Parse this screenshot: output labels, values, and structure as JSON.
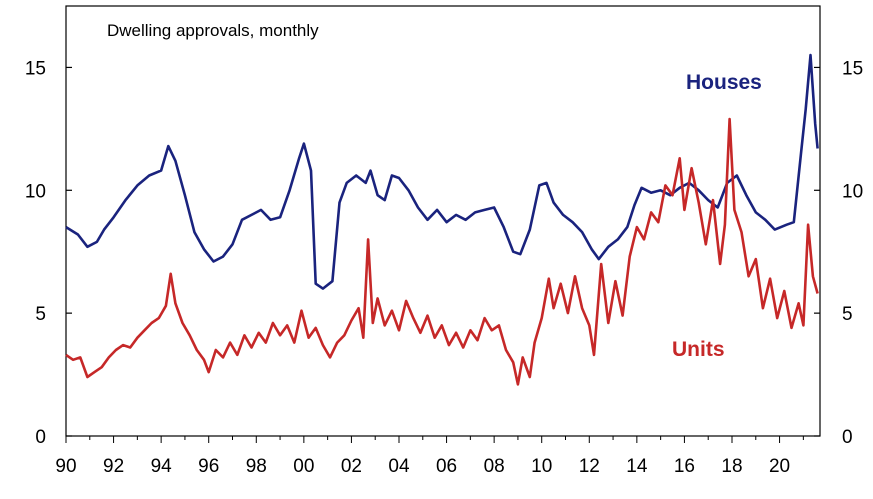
{
  "chart_data": {
    "type": "line",
    "title": "Dwelling approvals, monthly",
    "xlabel": "",
    "ylabel": "",
    "xlim": [
      1990,
      2021.7
    ],
    "ylim": [
      0,
      17.5
    ],
    "grid": false,
    "x_ticks": [
      "90",
      "92",
      "94",
      "96",
      "98",
      "00",
      "02",
      "04",
      "06",
      "08",
      "10",
      "12",
      "14",
      "16",
      "18",
      "20"
    ],
    "y_ticks_left": [
      "0",
      "5",
      "10",
      "15"
    ],
    "y_ticks_right": [
      "0",
      "5",
      "10",
      "15"
    ],
    "series": [
      {
        "name": "Houses",
        "color": "#1a237e",
        "points": [
          [
            1990.0,
            8.5
          ],
          [
            1990.5,
            8.2
          ],
          [
            1990.9,
            7.7
          ],
          [
            1991.3,
            7.9
          ],
          [
            1991.6,
            8.4
          ],
          [
            1992.0,
            8.9
          ],
          [
            1992.5,
            9.6
          ],
          [
            1993.0,
            10.2
          ],
          [
            1993.5,
            10.6
          ],
          [
            1994.0,
            10.8
          ],
          [
            1994.3,
            11.8
          ],
          [
            1994.6,
            11.2
          ],
          [
            1995.0,
            9.8
          ],
          [
            1995.4,
            8.3
          ],
          [
            1995.8,
            7.6
          ],
          [
            1996.2,
            7.1
          ],
          [
            1996.6,
            7.3
          ],
          [
            1997.0,
            7.8
          ],
          [
            1997.4,
            8.8
          ],
          [
            1997.8,
            9.0
          ],
          [
            1998.2,
            9.2
          ],
          [
            1998.6,
            8.8
          ],
          [
            1999.0,
            8.9
          ],
          [
            1999.4,
            10.0
          ],
          [
            1999.8,
            11.3
          ],
          [
            2000.0,
            11.9
          ],
          [
            2000.3,
            10.8
          ],
          [
            2000.5,
            6.2
          ],
          [
            2000.8,
            6.0
          ],
          [
            2001.2,
            6.3
          ],
          [
            2001.5,
            9.5
          ],
          [
            2001.8,
            10.3
          ],
          [
            2002.2,
            10.6
          ],
          [
            2002.6,
            10.3
          ],
          [
            2002.8,
            10.8
          ],
          [
            2003.1,
            9.8
          ],
          [
            2003.4,
            9.6
          ],
          [
            2003.7,
            10.6
          ],
          [
            2004.0,
            10.5
          ],
          [
            2004.4,
            10.0
          ],
          [
            2004.8,
            9.3
          ],
          [
            2005.2,
            8.8
          ],
          [
            2005.6,
            9.2
          ],
          [
            2006.0,
            8.7
          ],
          [
            2006.4,
            9.0
          ],
          [
            2006.8,
            8.8
          ],
          [
            2007.2,
            9.1
          ],
          [
            2007.6,
            9.2
          ],
          [
            2008.0,
            9.3
          ],
          [
            2008.4,
            8.5
          ],
          [
            2008.8,
            7.5
          ],
          [
            2009.1,
            7.4
          ],
          [
            2009.5,
            8.4
          ],
          [
            2009.9,
            10.2
          ],
          [
            2010.2,
            10.3
          ],
          [
            2010.5,
            9.5
          ],
          [
            2010.9,
            9.0
          ],
          [
            2011.3,
            8.7
          ],
          [
            2011.7,
            8.3
          ],
          [
            2012.1,
            7.6
          ],
          [
            2012.4,
            7.2
          ],
          [
            2012.8,
            7.7
          ],
          [
            2013.2,
            8.0
          ],
          [
            2013.6,
            8.5
          ],
          [
            2013.9,
            9.4
          ],
          [
            2014.2,
            10.1
          ],
          [
            2014.6,
            9.9
          ],
          [
            2015.0,
            10.0
          ],
          [
            2015.4,
            9.8
          ],
          [
            2015.8,
            10.1
          ],
          [
            2016.2,
            10.3
          ],
          [
            2016.6,
            10.0
          ],
          [
            2017.0,
            9.6
          ],
          [
            2017.4,
            9.3
          ],
          [
            2017.8,
            10.3
          ],
          [
            2018.2,
            10.6
          ],
          [
            2018.6,
            9.8
          ],
          [
            2019.0,
            9.1
          ],
          [
            2019.4,
            8.8
          ],
          [
            2019.8,
            8.4
          ],
          [
            2020.3,
            8.6
          ],
          [
            2020.6,
            8.7
          ],
          [
            2020.9,
            11.5
          ],
          [
            2021.1,
            13.3
          ],
          [
            2021.3,
            15.5
          ],
          [
            2021.5,
            12.7
          ],
          [
            2021.6,
            11.7
          ]
        ]
      },
      {
        "name": "Units",
        "color": "#c62828",
        "points": [
          [
            1990.0,
            3.3
          ],
          [
            1990.3,
            3.1
          ],
          [
            1990.6,
            3.2
          ],
          [
            1990.9,
            2.4
          ],
          [
            1991.2,
            2.6
          ],
          [
            1991.5,
            2.8
          ],
          [
            1991.8,
            3.2
          ],
          [
            1992.1,
            3.5
          ],
          [
            1992.4,
            3.7
          ],
          [
            1992.7,
            3.6
          ],
          [
            1993.0,
            4.0
          ],
          [
            1993.3,
            4.3
          ],
          [
            1993.6,
            4.6
          ],
          [
            1993.9,
            4.8
          ],
          [
            1994.2,
            5.3
          ],
          [
            1994.4,
            6.6
          ],
          [
            1994.6,
            5.4
          ],
          [
            1994.9,
            4.6
          ],
          [
            1995.2,
            4.1
          ],
          [
            1995.5,
            3.5
          ],
          [
            1995.8,
            3.1
          ],
          [
            1996.0,
            2.6
          ],
          [
            1996.3,
            3.5
          ],
          [
            1996.6,
            3.2
          ],
          [
            1996.9,
            3.8
          ],
          [
            1997.2,
            3.3
          ],
          [
            1997.5,
            4.1
          ],
          [
            1997.8,
            3.6
          ],
          [
            1998.1,
            4.2
          ],
          [
            1998.4,
            3.8
          ],
          [
            1998.7,
            4.6
          ],
          [
            1999.0,
            4.1
          ],
          [
            1999.3,
            4.5
          ],
          [
            1999.6,
            3.8
          ],
          [
            1999.9,
            5.1
          ],
          [
            2000.2,
            4.0
          ],
          [
            2000.5,
            4.4
          ],
          [
            2000.8,
            3.7
          ],
          [
            2001.1,
            3.2
          ],
          [
            2001.4,
            3.8
          ],
          [
            2001.7,
            4.1
          ],
          [
            2002.0,
            4.7
          ],
          [
            2002.3,
            5.2
          ],
          [
            2002.5,
            4.0
          ],
          [
            2002.7,
            8.0
          ],
          [
            2002.9,
            4.6
          ],
          [
            2003.1,
            5.6
          ],
          [
            2003.4,
            4.5
          ],
          [
            2003.7,
            5.1
          ],
          [
            2004.0,
            4.3
          ],
          [
            2004.3,
            5.5
          ],
          [
            2004.6,
            4.8
          ],
          [
            2004.9,
            4.2
          ],
          [
            2005.2,
            4.9
          ],
          [
            2005.5,
            4.0
          ],
          [
            2005.8,
            4.5
          ],
          [
            2006.1,
            3.7
          ],
          [
            2006.4,
            4.2
          ],
          [
            2006.7,
            3.6
          ],
          [
            2007.0,
            4.3
          ],
          [
            2007.3,
            3.9
          ],
          [
            2007.6,
            4.8
          ],
          [
            2007.9,
            4.3
          ],
          [
            2008.2,
            4.5
          ],
          [
            2008.5,
            3.5
          ],
          [
            2008.8,
            3.0
          ],
          [
            2009.0,
            2.1
          ],
          [
            2009.2,
            3.2
          ],
          [
            2009.5,
            2.4
          ],
          [
            2009.7,
            3.8
          ],
          [
            2010.0,
            4.8
          ],
          [
            2010.3,
            6.4
          ],
          [
            2010.5,
            5.2
          ],
          [
            2010.8,
            6.2
          ],
          [
            2011.1,
            5.0
          ],
          [
            2011.4,
            6.5
          ],
          [
            2011.7,
            5.2
          ],
          [
            2012.0,
            4.5
          ],
          [
            2012.2,
            3.3
          ],
          [
            2012.5,
            7.0
          ],
          [
            2012.8,
            4.6
          ],
          [
            2013.1,
            6.3
          ],
          [
            2013.4,
            4.9
          ],
          [
            2013.7,
            7.3
          ],
          [
            2014.0,
            8.5
          ],
          [
            2014.3,
            8.0
          ],
          [
            2014.6,
            9.1
          ],
          [
            2014.9,
            8.7
          ],
          [
            2015.2,
            10.2
          ],
          [
            2015.5,
            9.8
          ],
          [
            2015.8,
            11.3
          ],
          [
            2016.0,
            9.2
          ],
          [
            2016.3,
            10.9
          ],
          [
            2016.6,
            9.5
          ],
          [
            2016.9,
            7.8
          ],
          [
            2017.2,
            9.6
          ],
          [
            2017.5,
            7.0
          ],
          [
            2017.7,
            8.6
          ],
          [
            2017.9,
            12.9
          ],
          [
            2018.1,
            9.2
          ],
          [
            2018.4,
            8.3
          ],
          [
            2018.7,
            6.5
          ],
          [
            2019.0,
            7.2
          ],
          [
            2019.3,
            5.2
          ],
          [
            2019.6,
            6.4
          ],
          [
            2019.9,
            4.8
          ],
          [
            2020.2,
            5.9
          ],
          [
            2020.5,
            4.4
          ],
          [
            2020.8,
            5.4
          ],
          [
            2021.0,
            4.5
          ],
          [
            2021.2,
            8.6
          ],
          [
            2021.4,
            6.5
          ],
          [
            2021.6,
            5.8
          ]
        ]
      }
    ]
  }
}
